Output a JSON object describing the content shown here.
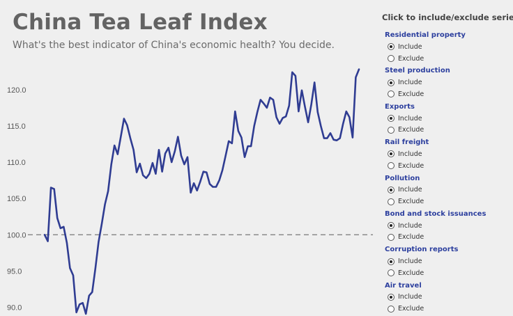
{
  "header": {
    "title": "China Tea Leaf Index",
    "subtitle": "What's the best indicator of China's economic health? You decide."
  },
  "panel": {
    "heading": "Click to include/exclude series",
    "include_label": "Include",
    "exclude_label": "Exclude",
    "series": [
      {
        "name": "Residential property",
        "included": true
      },
      {
        "name": "Steel production",
        "included": true
      },
      {
        "name": "Exports",
        "included": true
      },
      {
        "name": "Rail freight",
        "included": true
      },
      {
        "name": "Pollution",
        "included": true
      },
      {
        "name": "Bond and stock issuances",
        "included": true
      },
      {
        "name": "Corruption reports",
        "included": true
      },
      {
        "name": "Air travel",
        "included": true
      }
    ]
  },
  "chart_data": {
    "type": "line",
    "title": "China Tea Leaf Index",
    "subtitle": "What's the best indicator of China's economic health? You decide.",
    "yticks": [
      "90.0",
      "95.0",
      "100.0",
      "105.0",
      "110.0",
      "115.0",
      "120.0"
    ],
    "ylim": [
      88.8,
      124.2
    ],
    "reference_line": 100.0,
    "grid": false,
    "line_color": "#2f3c92",
    "reference_color": "#777777",
    "values": [
      100.0,
      99.1,
      106.5,
      106.3,
      102.3,
      100.9,
      101.1,
      98.9,
      95.4,
      94.4,
      89.3,
      90.4,
      90.6,
      89.1,
      91.6,
      92.1,
      95.4,
      99.0,
      101.5,
      104.2,
      106.0,
      109.7,
      112.3,
      111.1,
      113.5,
      116.0,
      115.1,
      113.3,
      111.7,
      108.6,
      109.8,
      108.2,
      107.8,
      108.4,
      109.9,
      108.4,
      111.7,
      108.7,
      111.2,
      112.0,
      110.0,
      111.5,
      113.5,
      110.9,
      109.7,
      110.7,
      105.8,
      107.1,
      106.1,
      107.3,
      108.7,
      108.6,
      107.0,
      106.6,
      106.6,
      107.5,
      108.9,
      110.9,
      112.9,
      112.6,
      117.0,
      114.3,
      113.4,
      110.7,
      112.2,
      112.2,
      115.0,
      116.9,
      118.6,
      118.1,
      117.5,
      118.9,
      118.6,
      116.2,
      115.3,
      116.1,
      116.3,
      117.8,
      122.4,
      121.9,
      117.0,
      119.9,
      117.6,
      115.5,
      118.0,
      121.0,
      116.9,
      115.0,
      113.3,
      113.3,
      114.0,
      113.1,
      113.0,
      113.3,
      115.3,
      117.0,
      116.2,
      113.4,
      121.7,
      122.8
    ]
  }
}
